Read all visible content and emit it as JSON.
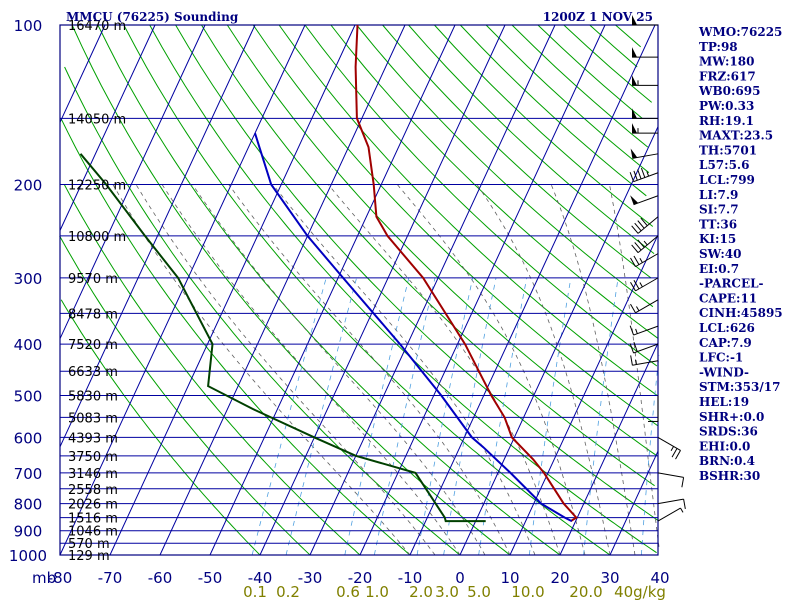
{
  "header": {
    "station": "MMCU (76225) Sounding",
    "time": "1200Z  1 NOV 25"
  },
  "indices": [
    "WMO:76225",
    "TP:98",
    "MW:180",
    "FRZ:617",
    "WB0:695",
    "PW:0.33",
    "RH:19.1",
    "MAXT:23.5",
    "TH:5701",
    "L57:5.6",
    "LCL:799",
    "LI:7.9",
    "SI:7.7",
    "TT:36",
    "KI:15",
    "SW:40",
    "EI:0.7",
    "-PARCEL-",
    "CAPE:11",
    "CINH:45895",
    "LCL:626",
    "CAP:7.9",
    "LFC:-1",
    "-WIND-",
    "STM:353/17",
    "HEL:19",
    "SHR+:0.0",
    "SRDS:36",
    "EHI:0.0",
    "BRN:0.4",
    "BSHR:30"
  ],
  "colors": {
    "frame": "#000080",
    "isobar": "#0000a0",
    "isotherm": "#0000a0",
    "dry_adiabat": "#00a000",
    "moist_adiabat": "#606060",
    "mixing_ratio": "#4fa0e0",
    "temperature": "#a00000",
    "dewpoint": "#004000",
    "parcel": "#0000c0",
    "wind": "#000000"
  },
  "chart_data": {
    "type": "line",
    "title": "MMCU (76225) Sounding",
    "xlabel": "",
    "ylabel": "mb",
    "skew_t": true,
    "y_scale": "log",
    "ylim": [
      1000,
      100
    ],
    "xlim": [
      -80,
      40
    ],
    "grid": true,
    "pressure_ticks": [
      "100",
      "200",
      "300",
      "400",
      "500",
      "600",
      "700",
      "800",
      "900",
      "1000"
    ],
    "pressure_axis_label": "mb",
    "height_ticks": [
      {
        "p": 100,
        "label": "16470 m"
      },
      {
        "p": 150,
        "label": "14050 m"
      },
      {
        "p": 200,
        "label": "12250 m"
      },
      {
        "p": 250,
        "label": "10800 m"
      },
      {
        "p": 300,
        "label": "9570 m"
      },
      {
        "p": 350,
        "label": "8478 m"
      },
      {
        "p": 400,
        "label": "7520 m"
      },
      {
        "p": 450,
        "label": "6633 m"
      },
      {
        "p": 500,
        "label": "5830 m"
      },
      {
        "p": 550,
        "label": "5083 m"
      },
      {
        "p": 600,
        "label": "4393 m"
      },
      {
        "p": 650,
        "label": "3750 m"
      },
      {
        "p": 700,
        "label": "3146 m"
      },
      {
        "p": 750,
        "label": "2558 m"
      },
      {
        "p": 800,
        "label": "2026 m"
      },
      {
        "p": 850,
        "label": "1516 m"
      },
      {
        "p": 900,
        "label": "1046 m"
      },
      {
        "p": 950,
        "label": "570 m"
      },
      {
        "p": 1000,
        "label": "129 m"
      }
    ],
    "temperature_ticks": [
      "-80",
      "-70",
      "-60",
      "-50",
      "-40",
      "-30",
      "-20",
      "-10",
      "0",
      "10",
      "20",
      "30",
      "40"
    ],
    "mixing_ratio_ticks": [
      "0.1",
      "0.2",
      "0.6",
      "1.0",
      "2.0",
      "3.0",
      "5.0",
      "10.0",
      "20.0",
      "40g/kg"
    ],
    "series": [
      {
        "name": "temperature",
        "points": [
          {
            "p": 863,
            "t": 19.0
          },
          {
            "p": 850,
            "t": 19.8
          },
          {
            "p": 800,
            "t": 16.0
          },
          {
            "p": 700,
            "t": 9.2
          },
          {
            "p": 660,
            "t": 5.8
          },
          {
            "p": 600,
            "t": -0.5
          },
          {
            "p": 550,
            "t": -3.8
          },
          {
            "p": 500,
            "t": -8.5
          },
          {
            "p": 400,
            "t": -18.5
          },
          {
            "p": 300,
            "t": -33.0
          },
          {
            "p": 250,
            "t": -44.0
          },
          {
            "p": 230,
            "t": -48.0
          },
          {
            "p": 200,
            "t": -51.5
          },
          {
            "p": 170,
            "t": -56.0
          },
          {
            "p": 150,
            "t": -61.0
          },
          {
            "p": 120,
            "t": -66.0
          },
          {
            "p": 100,
            "t": -69.5
          }
        ]
      },
      {
        "name": "dewpoint",
        "points": [
          {
            "p": 863,
            "t": 2.0
          },
          {
            "p": 863,
            "t": -6.0
          },
          {
            "p": 850,
            "t": -6.5
          },
          {
            "p": 700,
            "t": -16.5
          },
          {
            "p": 650,
            "t": -30.0
          },
          {
            "p": 600,
            "t": -40.0
          },
          {
            "p": 530,
            "t": -55.0
          },
          {
            "p": 480,
            "t": -66.0
          },
          {
            "p": 400,
            "t": -69.0
          },
          {
            "p": 300,
            "t": -82.0
          },
          {
            "p": 250,
            "t": -92.5
          },
          {
            "p": 200,
            "t": -105.0
          },
          {
            "p": 175,
            "t": -113.0
          }
        ]
      },
      {
        "name": "parcel",
        "points": [
          {
            "p": 863,
            "t": 19.2
          },
          {
            "p": 850,
            "t": 17.5
          },
          {
            "p": 800,
            "t": 11.5
          },
          {
            "p": 700,
            "t": 2.5
          },
          {
            "p": 626,
            "t": -5.3
          },
          {
            "p": 600,
            "t": -8.5
          },
          {
            "p": 500,
            "t": -18.5
          },
          {
            "p": 400,
            "t": -31.5
          },
          {
            "p": 300,
            "t": -49.0
          },
          {
            "p": 250,
            "t": -60.0
          },
          {
            "p": 200,
            "t": -72.0
          },
          {
            "p": 160,
            "t": -80.0
          }
        ]
      }
    ],
    "wind_barbs": [
      {
        "p": 863,
        "dir": 60,
        "spd": 5
      },
      {
        "p": 800,
        "dir": 80,
        "spd": 10
      },
      {
        "p": 700,
        "dir": 100,
        "spd": 10
      },
      {
        "p": 600,
        "dir": 120,
        "spd": 25
      },
      {
        "p": 500,
        "dir": 180,
        "spd": 10
      },
      {
        "p": 430,
        "dir": 260,
        "spd": 15
      },
      {
        "p": 400,
        "dir": 250,
        "spd": 20
      },
      {
        "p": 370,
        "dir": 250,
        "spd": 15
      },
      {
        "p": 330,
        "dir": 240,
        "spd": 15
      },
      {
        "p": 300,
        "dir": 240,
        "spd": 25
      },
      {
        "p": 270,
        "dir": 240,
        "spd": 25
      },
      {
        "p": 250,
        "dir": 230,
        "spd": 35
      },
      {
        "p": 230,
        "dir": 230,
        "spd": 40
      },
      {
        "p": 210,
        "dir": 250,
        "spd": 50
      },
      {
        "p": 190,
        "dir": 250,
        "spd": 45
      },
      {
        "p": 175,
        "dir": 260,
        "spd": 50
      },
      {
        "p": 160,
        "dir": 270,
        "spd": 55
      },
      {
        "p": 150,
        "dir": 270,
        "spd": 50
      },
      {
        "p": 130,
        "dir": 270,
        "spd": 55
      },
      {
        "p": 115,
        "dir": 270,
        "spd": 50
      },
      {
        "p": 100,
        "dir": 270,
        "spd": 50
      }
    ]
  }
}
